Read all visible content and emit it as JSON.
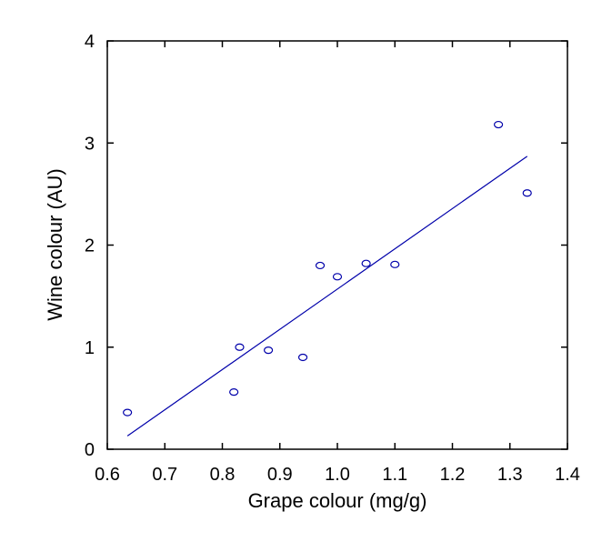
{
  "chart_data": {
    "type": "scatter",
    "title": "",
    "xlabel": "Grape colour (mg/g)",
    "ylabel": "Wine colour (AU)",
    "xlim": [
      0.6,
      1.4
    ],
    "ylim": [
      0,
      4
    ],
    "x_ticks": [
      "0.6",
      "0.7",
      "0.8",
      "0.9",
      "1.0",
      "1.1",
      "1.2",
      "1.3",
      "1.4"
    ],
    "y_ticks": [
      "0",
      "1",
      "2",
      "3",
      "4"
    ],
    "grid": false,
    "legend": "none",
    "marker_color": "#0000aa",
    "line_color": "#0000aa",
    "points": [
      {
        "x": 0.635,
        "y": 0.36
      },
      {
        "x": 0.82,
        "y": 0.56
      },
      {
        "x": 0.83,
        "y": 1.0
      },
      {
        "x": 0.88,
        "y": 0.97
      },
      {
        "x": 0.94,
        "y": 0.9
      },
      {
        "x": 0.97,
        "y": 1.8
      },
      {
        "x": 1.0,
        "y": 1.69
      },
      {
        "x": 1.05,
        "y": 1.82
      },
      {
        "x": 1.1,
        "y": 1.81
      },
      {
        "x": 1.28,
        "y": 3.18
      },
      {
        "x": 1.33,
        "y": 2.51
      }
    ],
    "fit_line": {
      "x": [
        0.635,
        1.33
      ],
      "y": [
        0.13,
        2.87
      ]
    }
  }
}
